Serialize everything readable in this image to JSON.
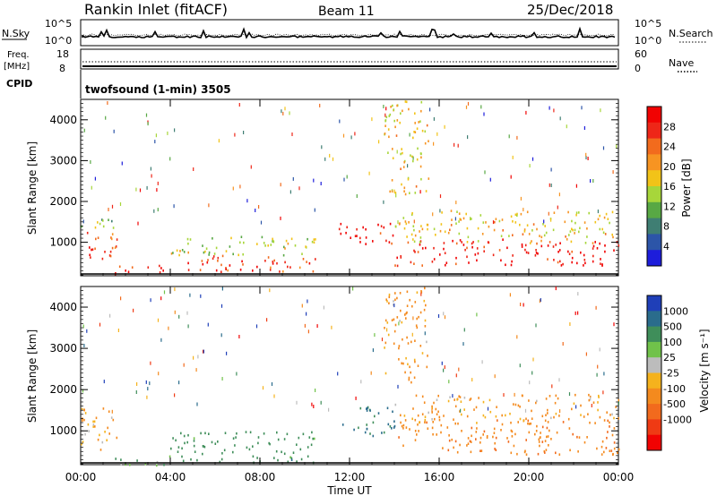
{
  "header": {
    "title": "Rankin Inlet (fitACF)",
    "beam": "Beam 11",
    "date": "25/Dec/2018"
  },
  "noise_panel": {
    "left_label": "N.Sky",
    "left_ticks": [
      "10^5",
      "10^0"
    ],
    "right_ticks": [
      "10^5",
      "10^0"
    ],
    "right_label": "N.Search"
  },
  "freq_panel": {
    "left_label_1": "Freq.",
    "left_label_2": "[MHz]",
    "left_ticks": [
      "18",
      "8"
    ],
    "right_ticks": [
      "60",
      "0"
    ],
    "right_label": "Nave"
  },
  "cpid_panel": {
    "label": "CPID",
    "value": "twofsound (1-min) 3505"
  },
  "power_panel": {
    "ylabel": "Slant Range [km]",
    "yticks": [
      "1000",
      "2000",
      "3000",
      "4000"
    ],
    "colorbar_label": "Power [dB]",
    "colorbar_ticks": [
      "4",
      "8",
      "12",
      "16",
      "20",
      "24",
      "28"
    ],
    "colors": [
      "#1d1ddb",
      "#2c55a8",
      "#3f7e73",
      "#58a844",
      "#a7d63a",
      "#f2c318",
      "#f79422",
      "#f26b1d",
      "#ee2618",
      "#f10202"
    ]
  },
  "velocity_panel": {
    "ylabel": "Slant Range [km]",
    "yticks": [
      "1000",
      "2000",
      "3000",
      "4000"
    ],
    "colorbar_label": "Velocity [m s⁻¹]",
    "colorbar_ticks": [
      "1000",
      "500",
      "100",
      "25",
      "-25",
      "-100",
      "-500",
      "-1000"
    ],
    "colors": [
      "#1f3fb8",
      "#2a6c8c",
      "#3f8e5a",
      "#70c24a",
      "#bcbcbc",
      "#f5b21d",
      "#f48a1e",
      "#f26a1d",
      "#ef3a14",
      "#f10202"
    ]
  },
  "time_axis": {
    "xlabel": "Time UT",
    "ticks": [
      "00:00",
      "04:00",
      "08:00",
      "12:00",
      "16:00",
      "20:00",
      "00:00"
    ]
  },
  "chart_data": [
    {
      "type": "heatmap",
      "title": "Rankin Inlet (fitACF)",
      "xlabel": "Time UT",
      "ylabel": "Slant Range [km]",
      "xlim": [
        0,
        24
      ],
      "ylim": [
        180,
        4500
      ],
      "colorbar": "Power [dB]",
      "colorbar_range": [
        0,
        32
      ],
      "scatter_regions": [
        {
          "t_start": 0.0,
          "t_end": 1.6,
          "r_min": 550,
          "r_max": 1350,
          "value": 26
        },
        {
          "t_start": 0.0,
          "t_end": 1.5,
          "r_min": 1300,
          "r_max": 1700,
          "value": 14
        },
        {
          "t_start": 1.5,
          "t_end": 4.0,
          "r_min": 180,
          "r_max": 450,
          "value": 28
        },
        {
          "t_start": 4.0,
          "t_end": 10.5,
          "r_min": 300,
          "r_max": 700,
          "value": 26
        },
        {
          "t_start": 4.0,
          "t_end": 10.5,
          "r_min": 700,
          "r_max": 1200,
          "value": 15
        },
        {
          "t_start": 11.5,
          "t_end": 14.0,
          "r_min": 900,
          "r_max": 1500,
          "value": 30
        },
        {
          "t_start": 14.0,
          "t_end": 24.0,
          "r_min": 450,
          "r_max": 1100,
          "value": 29
        },
        {
          "t_start": 14.0,
          "t_end": 24.0,
          "r_min": 1000,
          "r_max": 1800,
          "value": 18
        },
        {
          "t_start": 13.5,
          "t_end": 15.5,
          "r_min": 2200,
          "r_max": 4500,
          "value": 18
        }
      ]
    },
    {
      "type": "heatmap",
      "title": "Beam 11",
      "xlabel": "Time UT",
      "ylabel": "Slant Range [km]",
      "xlim": [
        0,
        24
      ],
      "ylim": [
        180,
        4500
      ],
      "colorbar": "Velocity [m s⁻¹]",
      "colorbar_levels": [
        1000,
        500,
        100,
        25,
        -25,
        -100,
        -500,
        -1000
      ],
      "scatter_regions": [
        {
          "t_start": 0.0,
          "t_end": 1.6,
          "r_min": 550,
          "r_max": 1700,
          "value": -100
        },
        {
          "t_start": 1.5,
          "t_end": 4.0,
          "r_min": 180,
          "r_max": 450,
          "value": 100
        },
        {
          "t_start": 4.0,
          "t_end": 10.5,
          "r_min": 250,
          "r_max": 1000,
          "value": 300
        },
        {
          "t_start": 11.5,
          "t_end": 14.0,
          "r_min": 900,
          "r_max": 1600,
          "value": 600
        },
        {
          "t_start": 14.0,
          "t_end": 24.0,
          "r_min": 450,
          "r_max": 1300,
          "value": -400
        },
        {
          "t_start": 14.0,
          "t_end": 24.0,
          "r_min": 1200,
          "r_max": 1900,
          "value": -150
        },
        {
          "t_start": 13.5,
          "t_end": 15.5,
          "r_min": 2200,
          "r_max": 4500,
          "value": -150
        }
      ]
    }
  ]
}
